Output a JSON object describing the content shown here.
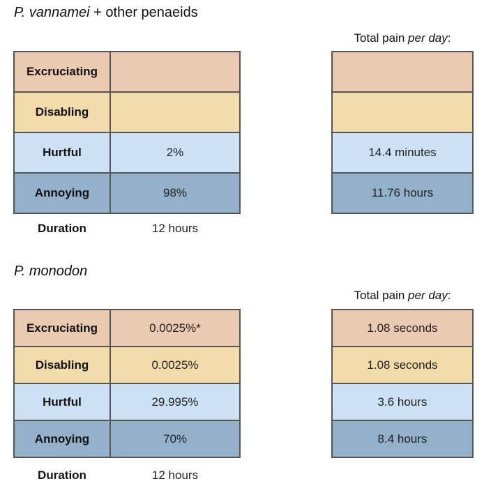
{
  "sections": [
    {
      "title_italic": "P. vannamei",
      "title_rest": " + other penaeids",
      "total_label_prefix": "Total pain ",
      "total_label_italic": "per day",
      "total_label_suffix": ":",
      "rows": [
        {
          "label": "Excruciating",
          "percent": "",
          "total": ""
        },
        {
          "label": "Disabling",
          "percent": "",
          "total": ""
        },
        {
          "label": "Hurtful",
          "percent": "2%",
          "total": "14.4 minutes"
        },
        {
          "label": "Annoying",
          "percent": "98%",
          "total": "11.76 hours"
        }
      ],
      "duration_label": "Duration",
      "duration_value": "12 hours"
    },
    {
      "title_italic": "P. monodon",
      "title_rest": "",
      "total_label_prefix": "Total pain ",
      "total_label_italic": "per day",
      "total_label_suffix": ":",
      "rows": [
        {
          "label": "Excruciating",
          "percent": "0.0025%*",
          "total": "1.08 seconds"
        },
        {
          "label": "Disabling",
          "percent": "0.0025%",
          "total": "1.08 seconds"
        },
        {
          "label": "Hurtful",
          "percent": "29.995%",
          "total": "3.6 hours"
        },
        {
          "label": "Annoying",
          "percent": "70%",
          "total": "8.4 hours"
        }
      ],
      "duration_label": "Duration",
      "duration_value": "12 hours"
    }
  ],
  "colors": {
    "excruciating": "#ebcab2",
    "disabling": "#f2dcab",
    "hurtful": "#cce1f3",
    "annoying": "#93b1cb",
    "border": "#555555"
  }
}
